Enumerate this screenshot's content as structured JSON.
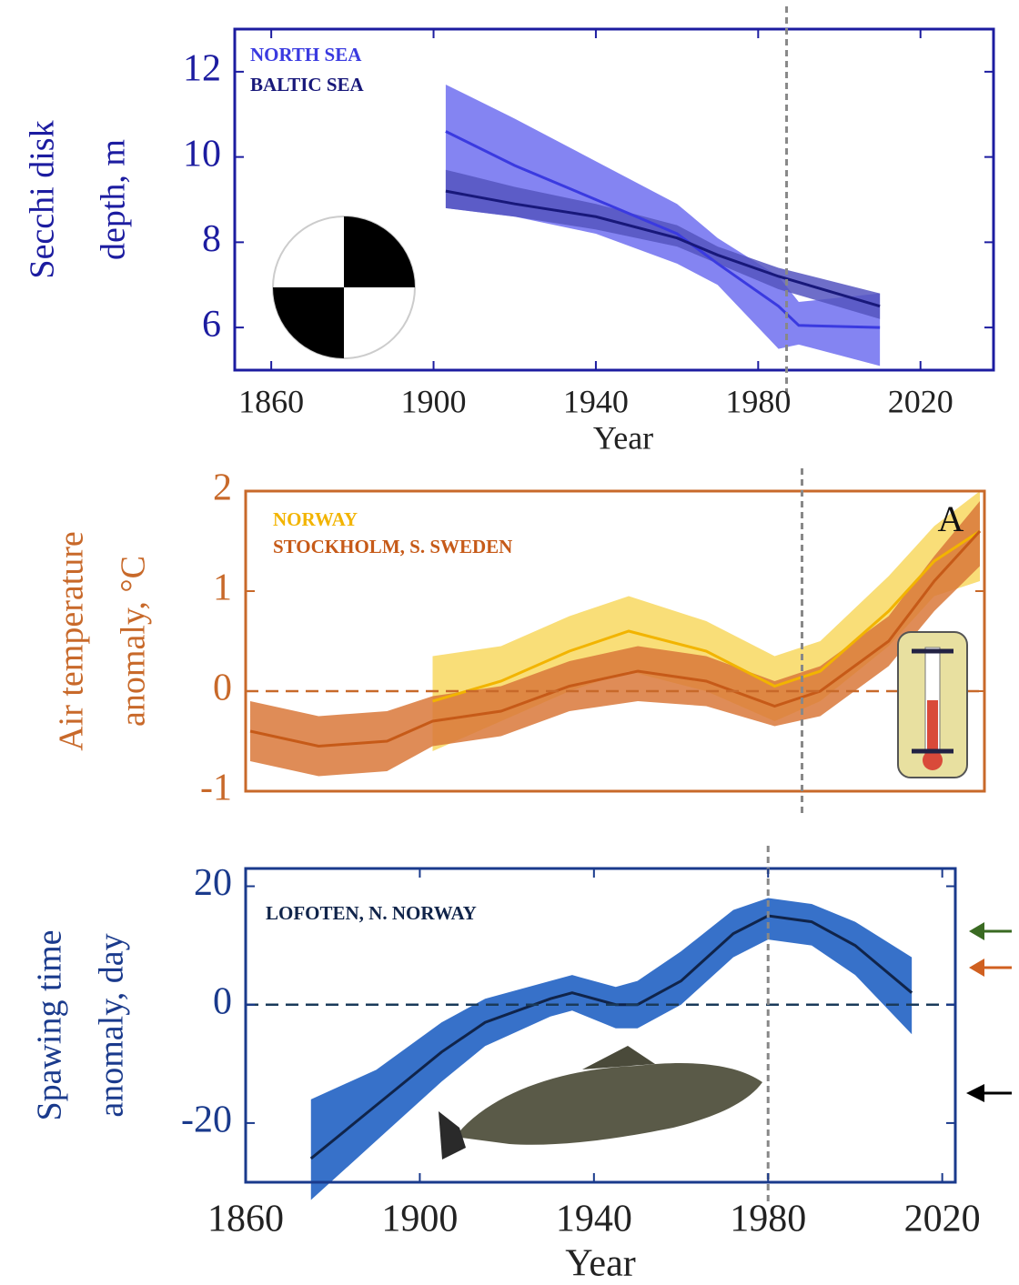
{
  "chart_data": [
    {
      "type": "line",
      "ylabel": [
        "Secchi disk",
        "depth, m"
      ],
      "xlabel": "Year",
      "axis_color": "#1c1ca0",
      "xlim": [
        1851,
        2038
      ],
      "xticks": [
        1860,
        1900,
        1940,
        1980,
        2020
      ],
      "ylim": [
        5,
        13
      ],
      "yticks": [
        6,
        8,
        10,
        12
      ],
      "vline": 1987,
      "series": [
        {
          "name": "NORTH SEA",
          "color": "#3a3ae0",
          "band_color": "#6e6ef0",
          "x": [
            1903,
            1920,
            1940,
            1960,
            1970,
            1985,
            1990,
            2010
          ],
          "values": [
            10.6,
            9.8,
            9.0,
            8.2,
            7.5,
            6.5,
            6.05,
            6.0
          ],
          "lower": [
            8.8,
            8.6,
            8.2,
            7.5,
            7.0,
            5.5,
            5.6,
            5.1
          ],
          "upper": [
            11.7,
            10.9,
            9.9,
            8.9,
            8.1,
            7.2,
            6.6,
            6.8
          ]
        },
        {
          "name": "BALTIC SEA",
          "color": "#18187a",
          "band_color": "#5555c0",
          "x": [
            1903,
            1920,
            1940,
            1960,
            1970,
            1985,
            2010
          ],
          "values": [
            9.2,
            8.9,
            8.6,
            8.1,
            7.7,
            7.2,
            6.5
          ],
          "lower": [
            8.8,
            8.6,
            8.3,
            7.9,
            7.5,
            6.9,
            6.2
          ],
          "upper": [
            9.7,
            9.3,
            8.9,
            8.4,
            7.9,
            7.4,
            6.8
          ]
        }
      ]
    },
    {
      "type": "line",
      "ylabel": [
        "Air temperature",
        "anomaly, °C"
      ],
      "axis_color": "#c8692a",
      "annotation": "A",
      "xlim": [
        1859,
        2021
      ],
      "ylim": [
        -1,
        2
      ],
      "yticks": [
        -1,
        0,
        1,
        2
      ],
      "vline": 1981,
      "hline": 0,
      "series": [
        {
          "name": "NORWAY",
          "color": "#f2b400",
          "band_color": "#f8d860",
          "x": [
            1900,
            1915,
            1930,
            1943,
            1960,
            1975,
            1985,
            2000,
            2010,
            2020
          ],
          "values": [
            -0.1,
            0.1,
            0.4,
            0.6,
            0.4,
            0.05,
            0.2,
            0.8,
            1.3,
            1.6
          ],
          "lower": [
            -0.6,
            -0.3,
            0.0,
            0.2,
            0.0,
            -0.3,
            -0.1,
            0.45,
            0.95,
            1.1
          ],
          "upper": [
            0.35,
            0.45,
            0.75,
            0.95,
            0.7,
            0.35,
            0.5,
            1.15,
            1.65,
            2.0
          ]
        },
        {
          "name": "STOCKHOLM, S. SWEDEN",
          "color": "#c65a18",
          "band_color": "#d9783a",
          "x": [
            1860,
            1875,
            1890,
            1900,
            1915,
            1930,
            1945,
            1960,
            1975,
            1985,
            2000,
            2010,
            2020
          ],
          "values": [
            -0.4,
            -0.55,
            -0.5,
            -0.3,
            -0.2,
            0.05,
            0.2,
            0.1,
            -0.15,
            0.0,
            0.5,
            1.1,
            1.6
          ],
          "lower": [
            -0.7,
            -0.85,
            -0.8,
            -0.55,
            -0.45,
            -0.2,
            -0.1,
            -0.15,
            -0.35,
            -0.25,
            0.25,
            0.8,
            1.25
          ],
          "upper": [
            -0.1,
            -0.25,
            -0.2,
            -0.05,
            0.05,
            0.3,
            0.45,
            0.35,
            0.1,
            0.25,
            0.75,
            1.35,
            1.9
          ]
        }
      ]
    },
    {
      "type": "line",
      "ylabel": [
        "Spawing time",
        "anomaly, day"
      ],
      "xlabel": "Year",
      "axis_color": "#1a3a8c",
      "xlim": [
        1860,
        2023
      ],
      "xticks": [
        1860,
        1900,
        1940,
        1980,
        2020
      ],
      "ylim": [
        -30,
        23
      ],
      "yticks": [
        -20,
        0,
        20
      ],
      "vline": 1980,
      "hline": 0,
      "series": [
        {
          "name": "LOFOTEN, N. NORWAY",
          "color": "#10244a",
          "band_color": "#1458c0",
          "x": [
            1875,
            1890,
            1905,
            1915,
            1930,
            1935,
            1945,
            1950,
            1960,
            1972,
            1980,
            1990,
            2000,
            2013
          ],
          "values": [
            -26,
            -17,
            -8,
            -3,
            1,
            2,
            0,
            0,
            4,
            12,
            15,
            14,
            10,
            2
          ],
          "lower": [
            -33,
            -23,
            -13,
            -7,
            -2,
            -1,
            -4,
            -4,
            0,
            8,
            11,
            10,
            5,
            -5
          ],
          "upper": [
            -16,
            -11,
            -3,
            1,
            4,
            5,
            3,
            4,
            9,
            16,
            18,
            17,
            14,
            8
          ]
        }
      ]
    }
  ]
}
